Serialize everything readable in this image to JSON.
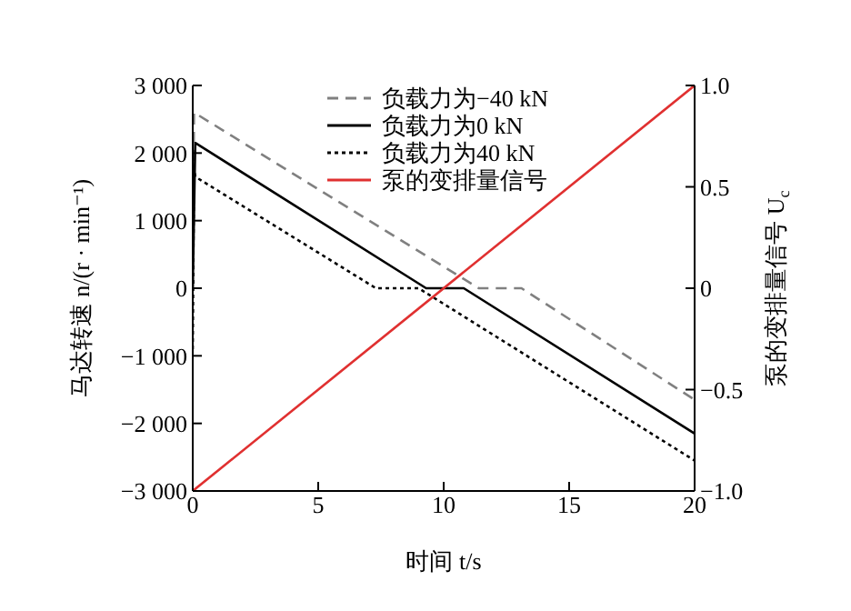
{
  "chart_data": {
    "type": "line",
    "xlabel": "时间 t/s",
    "ylabel": "马达转速 n/(r · min⁻¹)",
    "y2label": "泵的变排量信号 U$_{c}$",
    "xlim": [
      0,
      20
    ],
    "xticks": [
      0,
      5,
      10,
      15,
      20
    ],
    "ylim": [
      -3000,
      3000
    ],
    "yticks": [
      {
        "value": -3000,
        "label": "−3 000"
      },
      {
        "value": -2000,
        "label": "−2 000"
      },
      {
        "value": -1000,
        "label": "−1 000"
      },
      0,
      {
        "value": 1000,
        "label": "1 000"
      },
      {
        "value": 2000,
        "label": "2 000"
      },
      {
        "value": 3000,
        "label": "3 000"
      }
    ],
    "y2lim": [
      -1,
      1
    ],
    "y2ticks": [
      {
        "value": -1,
        "label": "−1.0"
      },
      {
        "value": -0.5,
        "label": "−0.5"
      },
      0,
      {
        "value": 0.5,
        "label": "0.5"
      },
      {
        "value": 1,
        "label": "1.0"
      }
    ],
    "grid": false,
    "legend": "top",
    "marker": "none",
    "series": [
      {
        "name": "负载力为−40 kN",
        "color": "#808080",
        "line_style": "dashed",
        "x": [
          0,
          0.05,
          11.4,
          13.1,
          20
        ],
        "values": [
          0,
          2600,
          0,
          0,
          -1650
        ]
      },
      {
        "name": "负载力为0 kN",
        "color": "#000000",
        "line_style": "solid",
        "x": [
          0,
          0.1,
          9.3,
          10.8,
          20
        ],
        "values": [
          0,
          2150,
          0,
          0,
          -2150
        ]
      },
      {
        "name": "负载力为40 kN",
        "color": "#000000",
        "line_style": "dotted",
        "x": [
          0,
          0.05,
          0.1,
          7.3,
          9.0,
          20
        ],
        "values": [
          -900,
          1800,
          1650,
          0,
          0,
          -2550
        ]
      },
      {
        "name": "泵的变排量信号",
        "color": "#e03030",
        "line_style": "solid",
        "axis": "y2",
        "x": [
          0,
          20
        ],
        "values": [
          -1,
          1
        ]
      }
    ]
  }
}
